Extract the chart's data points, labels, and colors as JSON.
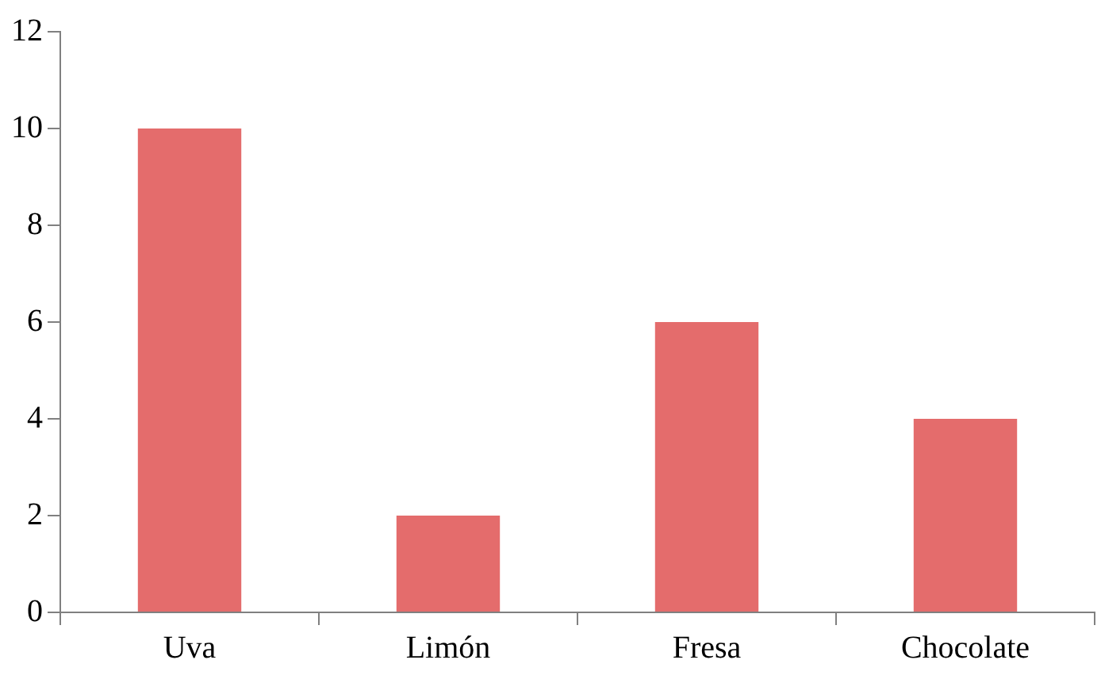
{
  "chart_data": {
    "type": "bar",
    "categories": [
      "Uva",
      "Limón",
      "Fresa",
      "Chocolate"
    ],
    "values": [
      10,
      2,
      6,
      4
    ],
    "color": "#e46c6c",
    "ylim": [
      0,
      12
    ],
    "yticks": [
      0,
      2,
      4,
      6,
      8,
      10,
      12
    ],
    "grid": false,
    "legend": false
  }
}
